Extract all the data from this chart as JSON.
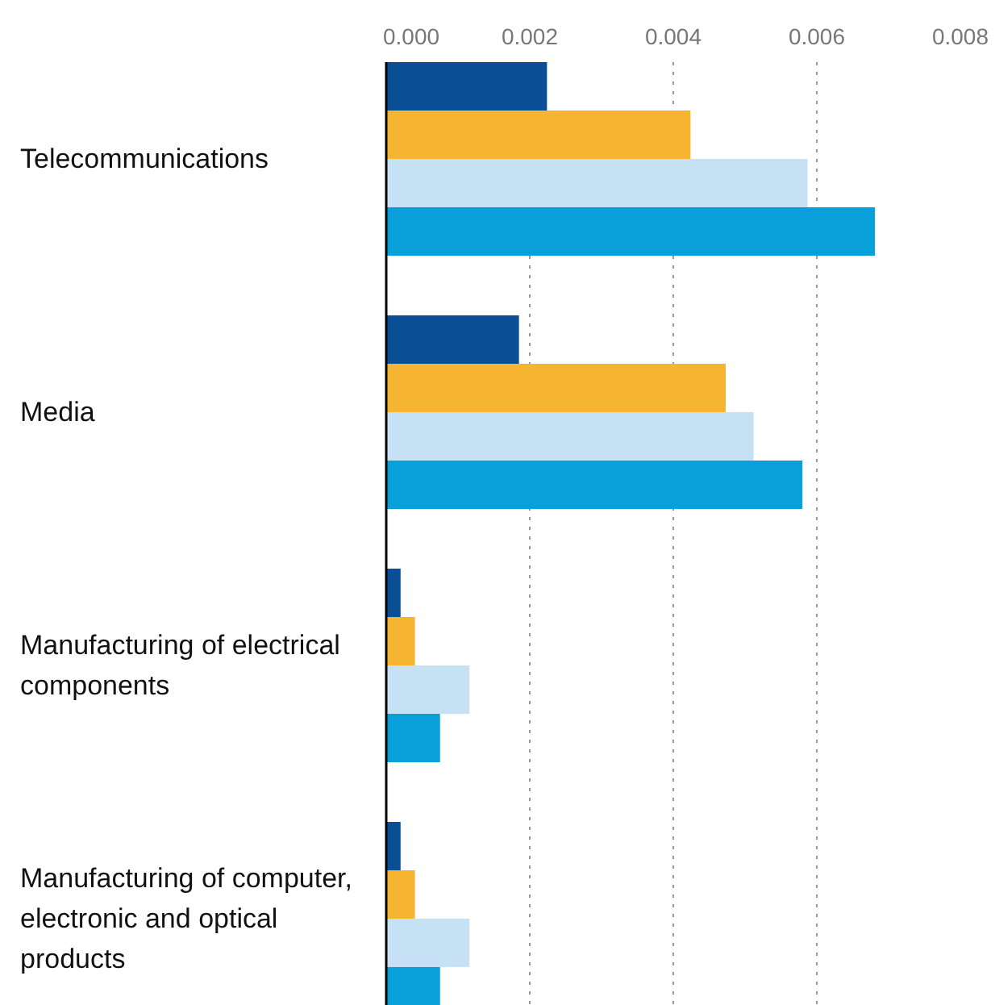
{
  "chart_data": {
    "type": "bar",
    "orientation": "horizontal",
    "categories": [
      "Telecommunications",
      "Media",
      "Manufacturing of electrical components",
      "Manufacturing of computer, electronic and optical products"
    ],
    "series": [
      {
        "color": "#0a4f96",
        "values": [
          0.00224,
          0.00185,
          0.0002,
          0.0002
        ]
      },
      {
        "color": "#f6b530",
        "values": [
          0.00424,
          0.00473,
          0.0004,
          0.0004
        ]
      },
      {
        "color": "#c6e1f4",
        "values": [
          0.00587,
          0.00512,
          0.00116,
          0.00116
        ]
      },
      {
        "color": "#089fdb",
        "values": [
          0.00681,
          0.0058,
          0.00075,
          0.00075
        ]
      }
    ],
    "xlim": [
      0,
      0.008
    ],
    "xticks": [
      {
        "value": 0,
        "label": "0.000"
      },
      {
        "value": 0.002,
        "label": "0.002"
      },
      {
        "value": 0.004,
        "label": "0.004"
      },
      {
        "value": 0.006,
        "label": "0.006"
      },
      {
        "value": 0.008,
        "label": "0.008"
      }
    ],
    "grid": "x"
  }
}
